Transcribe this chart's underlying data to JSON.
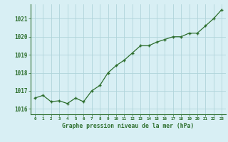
{
  "x": [
    0,
    1,
    2,
    3,
    4,
    5,
    6,
    7,
    8,
    9,
    10,
    11,
    12,
    13,
    14,
    15,
    16,
    17,
    18,
    19,
    20,
    21,
    22,
    23
  ],
  "y": [
    1016.6,
    1016.75,
    1016.4,
    1016.45,
    1016.3,
    1016.6,
    1016.4,
    1017.0,
    1017.3,
    1018.0,
    1018.4,
    1018.7,
    1019.1,
    1019.5,
    1019.5,
    1019.7,
    1019.85,
    1020.0,
    1020.0,
    1020.2,
    1020.2,
    1020.6,
    1021.0,
    1021.5
  ],
  "bg_color": "#d8eff4",
  "line_color": "#2d6e2d",
  "marker_color": "#2d6e2d",
  "grid_color": "#b0d4da",
  "tick_label_color": "#2d6e2d",
  "xlabel": "Graphe pression niveau de la mer (hPa)",
  "xlabel_color": "#2d6e2d",
  "ylim": [
    1015.7,
    1021.8
  ],
  "yticks": [
    1016,
    1017,
    1018,
    1019,
    1020,
    1021
  ],
  "xticks": [
    0,
    1,
    2,
    3,
    4,
    5,
    6,
    7,
    8,
    9,
    10,
    11,
    12,
    13,
    14,
    15,
    16,
    17,
    18,
    19,
    20,
    21,
    22,
    23
  ],
  "spine_color": "#2d6e2d"
}
